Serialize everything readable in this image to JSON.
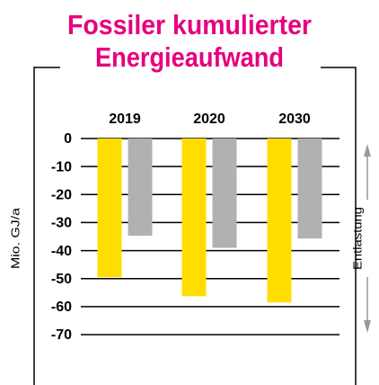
{
  "chart_data": {
    "type": "bar",
    "title": [
      "Fossiler kumulierter",
      "Energieaufwand"
    ],
    "y_label": "Mio. GJ/a",
    "annotation": "Entlastung",
    "categories": [
      "2019",
      "2020",
      "2030"
    ],
    "series": [
      {
        "color": "#ffdd00",
        "values": [
          -49.5,
          -56.3,
          -58.5
        ]
      },
      {
        "color": "#b1b1b3",
        "values": [
          -34.7,
          -39,
          -35.7
        ]
      }
    ],
    "ylim": [
      -70,
      0
    ],
    "yticks": [
      0,
      -10,
      -20,
      -30,
      -40,
      -50,
      -60,
      -70
    ],
    "grid": true
  }
}
